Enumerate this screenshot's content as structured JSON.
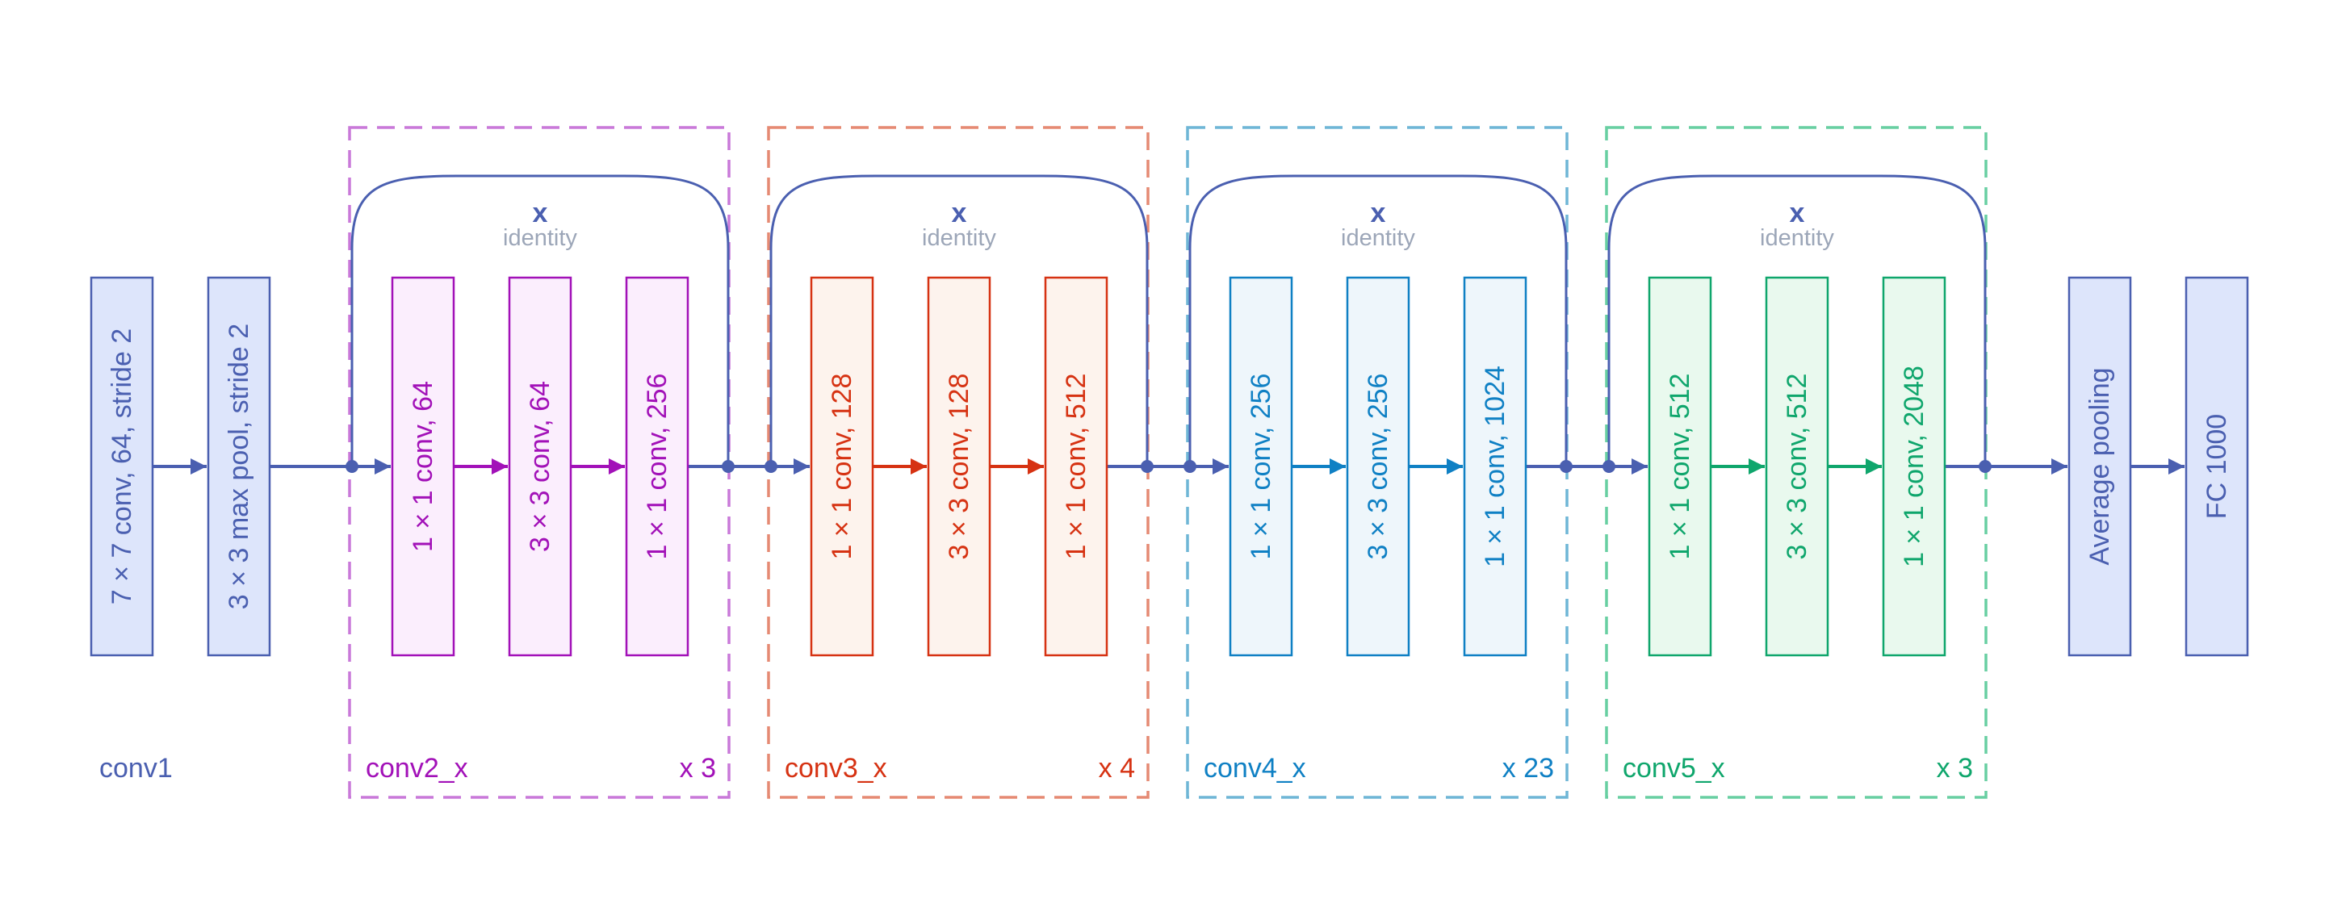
{
  "colors": {
    "main": "#4a5fb0",
    "main_fill": "#dde5fb",
    "identity_text": "#9ca6b8",
    "stage2": "#a211b8",
    "stage2_fill": "#fbeefd",
    "stage2_dash": "#c979d9",
    "stage3": "#d63212",
    "stage3_fill": "#fdf3ed",
    "stage3_dash": "#e58a73",
    "stage4": "#0f80c4",
    "stage4_fill": "#eef6fb",
    "stage4_dash": "#6fb6d6",
    "stage5": "#0fa66c",
    "stage5_fill": "#e9f9ee",
    "stage5_dash": "#68cfa2"
  },
  "conv1": {
    "name": "conv1",
    "block1": "7 × 7 conv, 64, stride 2",
    "block2": "3 × 3 max pool, stride 2"
  },
  "stages": [
    {
      "name": "conv2_x",
      "repeat": "x 3",
      "x_label": "x",
      "identity_label": "identity",
      "blocks": [
        "1 × 1 conv, 64",
        "3 × 3 conv, 64",
        "1 × 1 conv, 256"
      ]
    },
    {
      "name": "conv3_x",
      "repeat": "x 4",
      "x_label": "x",
      "identity_label": "identity",
      "blocks": [
        "1 × 1 conv, 128",
        "3 × 3 conv, 128",
        "1 × 1 conv, 512"
      ]
    },
    {
      "name": "conv4_x",
      "repeat": "x 23",
      "x_label": "x",
      "identity_label": "identity",
      "blocks": [
        "1 × 1 conv, 256",
        "3 × 3 conv, 256",
        "1 × 1 conv, 1024"
      ]
    },
    {
      "name": "conv5_x",
      "repeat": "x 3",
      "x_label": "x",
      "identity_label": "identity",
      "blocks": [
        "1 × 1 conv, 512",
        "3 × 3 conv, 512",
        "1 × 1 conv, 2048"
      ]
    }
  ],
  "head": {
    "pool": "Average pooling",
    "fc": "FC 1000"
  }
}
